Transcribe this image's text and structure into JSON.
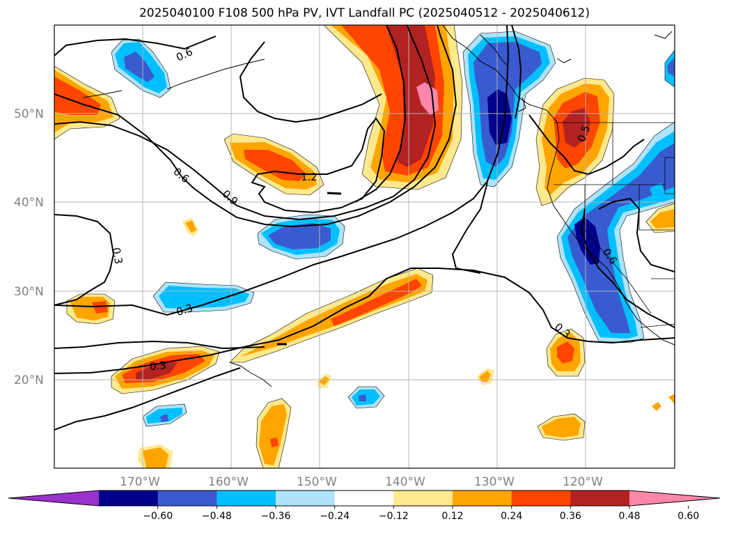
{
  "title": "2025040100 F108 500 hPa PV, IVT Landfall PC (2025040512 - 2025040612)",
  "lat_labels": [
    "50°N",
    "40°N",
    "30°N",
    "20°N"
  ],
  "lon_labels": [
    "170°W",
    "160°W",
    "150°W",
    "140°W",
    "130°W",
    "120°W"
  ],
  "contour_labels": [
    "0.6",
    "0.6",
    "0.9",
    "1.2",
    "0.3",
    "0.3",
    "0.3",
    "0.3",
    "0.6",
    "0.5"
  ],
  "colorbar": {
    "ticks": [
      "−0.60",
      "−0.48",
      "−0.36",
      "−0.24",
      "−0.12",
      "0.12",
      "0.24",
      "0.36",
      "0.48",
      "0.60"
    ],
    "colors": [
      "#9932cc",
      "#00008b",
      "#3a5bd0",
      "#00bfff",
      "#aee3fb",
      "#ffffff",
      "#ffe98c",
      "#ffa500",
      "#ff4500",
      "#b22222",
      "#ff88aa"
    ]
  },
  "field_colors": {
    "pink": "#ff88aa",
    "darkred": "#b22222",
    "red": "#ff4500",
    "orange": "#ffa500",
    "yellow": "#ffe98c",
    "lightblue": "#aee3fb",
    "cyan": "#00bfff",
    "blue": "#3a5bd0",
    "navy": "#00008b"
  }
}
